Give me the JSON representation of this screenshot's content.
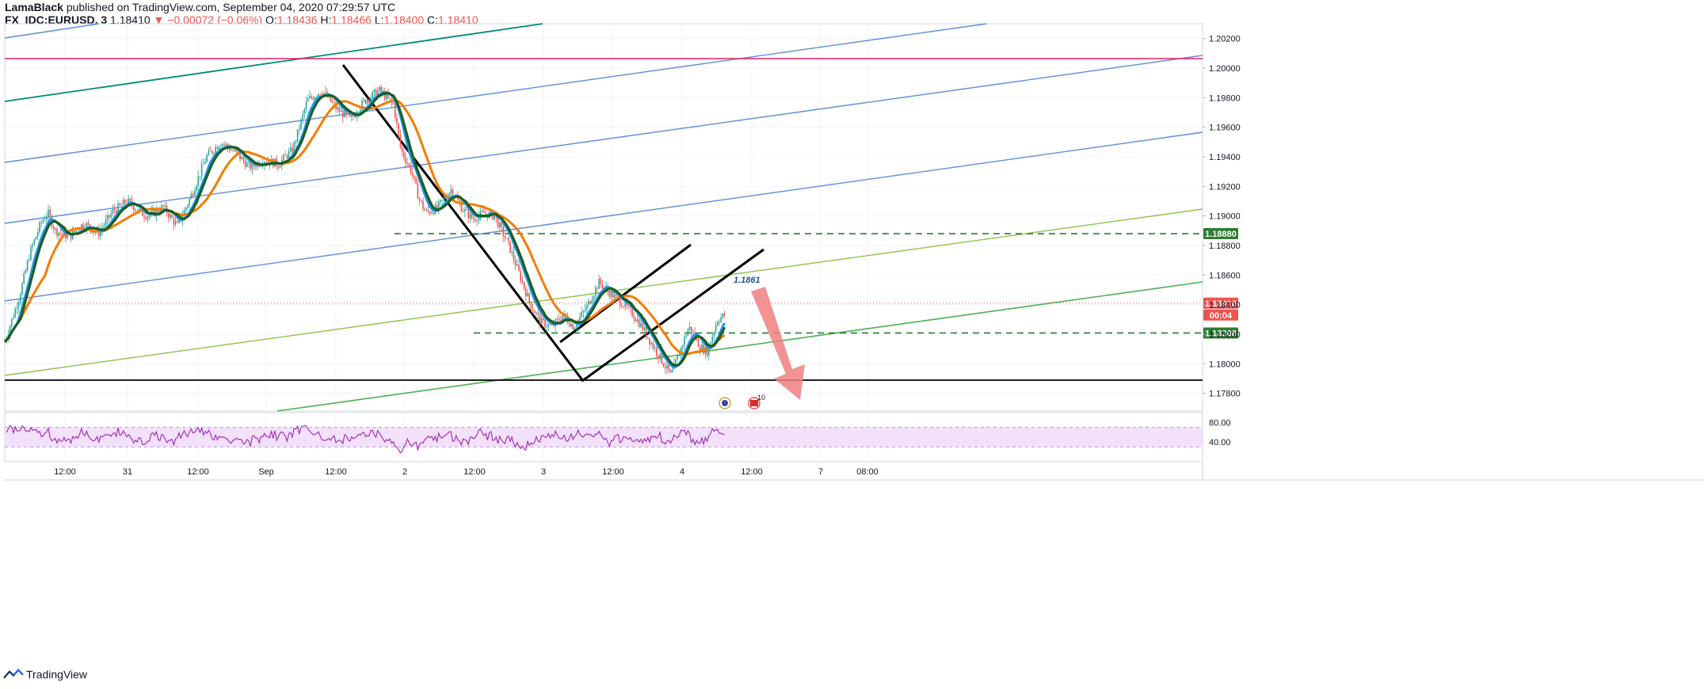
{
  "header": {
    "publisher": "LamaBlack",
    "published_text": "published on TradingView.com, September 04, 2020 07:29:57 UTC",
    "symbol": "FX_IDC:EURUSD, 3",
    "last": "1.18410",
    "change": "−0.00072 (−0.06%)",
    "o_label": "O:",
    "o": "1.18436",
    "h_label": "H:",
    "h": "1.18466",
    "l_label": "L:",
    "l": "1.18400",
    "c_label": "C:",
    "c": "1.18410"
  },
  "footer": {
    "brand": "TradingView",
    "logo_icon": "tradingview-logo-icon"
  },
  "colors": {
    "candle_up": "#26a69a",
    "candle_down": "#ef5350",
    "ma_fast": "#2196f3",
    "ma_mid": "#1b5e20",
    "ma_slow": "#f57c00",
    "channel_blue": "#5b8fd9",
    "channel_teal": "#00897b",
    "channel_green": "#4caf50",
    "magenta": "#e91e63",
    "rsi": "#9c27b0",
    "rsi_band": "#f3e0fb",
    "arrow": "#f08080",
    "level_green": "#2e7d32"
  },
  "chart_data": {
    "type": "candlestick",
    "symbol": "FX_IDC:EURUSD",
    "timeframe": "3",
    "ylim": [
      1.1768,
      1.203
    ],
    "y_ticks": [
      "1.20200",
      "1.20000",
      "1.19800",
      "1.19600",
      "1.19400",
      "1.19200",
      "1.19000",
      "1.18800",
      "1.18600",
      "1.18400",
      "1.18200",
      "1.18000",
      "1.17800"
    ],
    "x_ticks": [
      "12:00",
      "31",
      "12:00",
      "Sep",
      "12:00",
      "2",
      "12:00",
      "3",
      "12:00",
      "4",
      "12:00",
      "7",
      "08:00"
    ],
    "price_labels": [
      {
        "text": "1.18880",
        "value": 1.1888,
        "role": "resistance"
      },
      {
        "text": "1.18410",
        "value": 1.1841,
        "role": "last"
      },
      {
        "text": "00:04",
        "role": "countdown"
      },
      {
        "text": "1.18208",
        "value": 1.18208,
        "role": "support"
      }
    ],
    "annotation": {
      "text": "1.1861",
      "value": 1.1861
    },
    "series_path": [
      [
        0,
        1.1815
      ],
      [
        0.02,
        1.1845
      ],
      [
        0.035,
        1.1875
      ],
      [
        0.05,
        1.1895
      ],
      [
        0.06,
        1.1902
      ],
      [
        0.07,
        1.189
      ],
      [
        0.09,
        1.1886
      ],
      [
        0.11,
        1.1895
      ],
      [
        0.13,
        1.1888
      ],
      [
        0.15,
        1.1903
      ],
      [
        0.17,
        1.191
      ],
      [
        0.19,
        1.1902
      ],
      [
        0.2,
        1.19
      ],
      [
        0.22,
        1.1906
      ],
      [
        0.24,
        1.1893
      ],
      [
        0.26,
        1.1915
      ],
      [
        0.28,
        1.194
      ],
      [
        0.3,
        1.195
      ],
      [
        0.32,
        1.1943
      ],
      [
        0.34,
        1.1933
      ],
      [
        0.36,
        1.1938
      ],
      [
        0.38,
        1.1935
      ],
      [
        0.4,
        1.1945
      ],
      [
        0.42,
        1.1978
      ],
      [
        0.44,
        1.1985
      ],
      [
        0.46,
        1.1973
      ],
      [
        0.48,
        1.1965
      ],
      [
        0.5,
        1.1978
      ],
      [
        0.52,
        1.1985
      ],
      [
        0.54,
        1.1975
      ],
      [
        0.55,
        1.1945
      ],
      [
        0.565,
        1.193
      ],
      [
        0.575,
        1.1912
      ],
      [
        0.585,
        1.1902
      ],
      [
        0.6,
        1.1905
      ],
      [
        0.62,
        1.1918
      ],
      [
        0.635,
        1.1905
      ],
      [
        0.65,
        1.1898
      ],
      [
        0.665,
        1.1902
      ],
      [
        0.68,
        1.19
      ],
      [
        0.7,
        1.188
      ],
      [
        0.715,
        1.186
      ],
      [
        0.73,
        1.184
      ],
      [
        0.745,
        1.1828
      ],
      [
        0.76,
        1.1825
      ],
      [
        0.775,
        1.1833
      ],
      [
        0.79,
        1.1825
      ],
      [
        0.8,
        1.1832
      ],
      [
        0.81,
        1.184
      ],
      [
        0.825,
        1.1855
      ],
      [
        0.84,
        1.1848
      ],
      [
        0.855,
        1.1842
      ],
      [
        0.87,
        1.1835
      ],
      [
        0.885,
        1.1825
      ],
      [
        0.9,
        1.1812
      ],
      [
        0.915,
        1.18
      ],
      [
        0.925,
        1.1792
      ],
      [
        0.935,
        1.1805
      ],
      [
        0.95,
        1.1825
      ],
      [
        0.965,
        1.1812
      ],
      [
        0.975,
        1.1808
      ],
      [
        0.99,
        1.183
      ],
      [
        1.0,
        1.1833
      ]
    ],
    "rsi": {
      "levels": [
        80,
        40
      ],
      "tick_labels": [
        "80.00",
        "40.00"
      ],
      "band": [
        70,
        30
      ]
    }
  }
}
